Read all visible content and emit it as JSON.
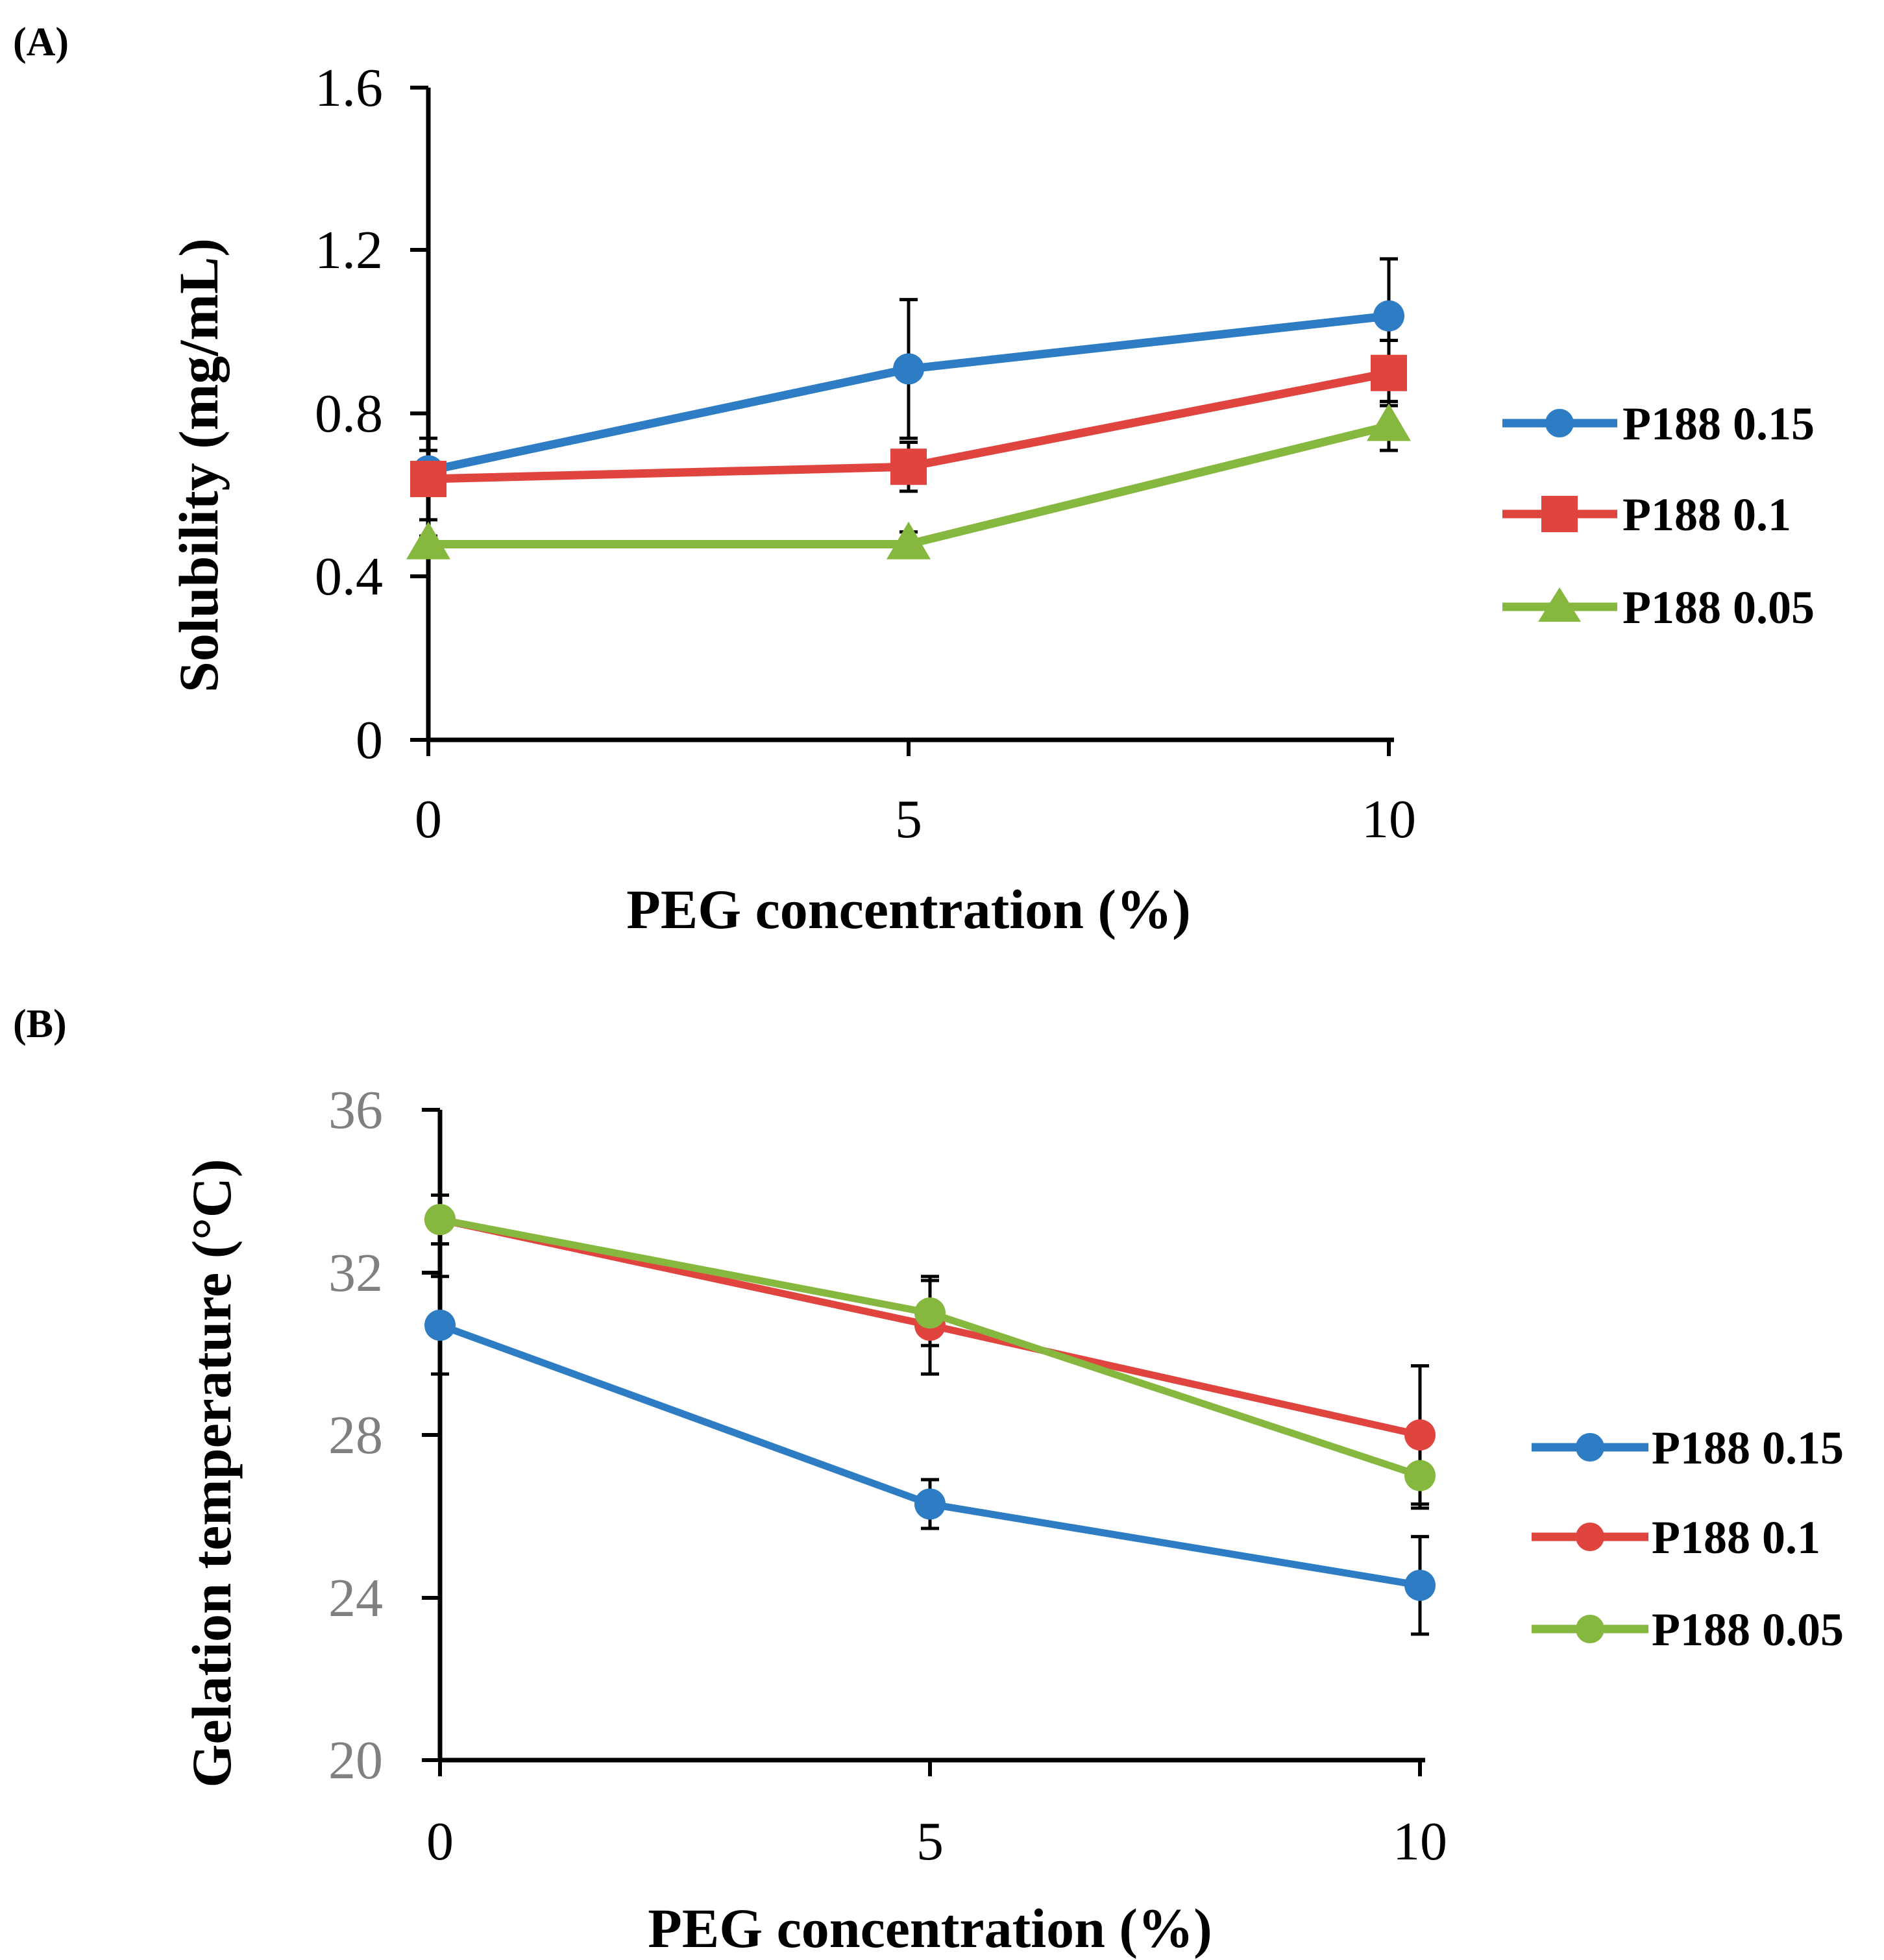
{
  "colors": {
    "blue": "#2e7dc4",
    "red": "#e0443f",
    "green": "#86b840",
    "axis": "#000000",
    "tick_b": "#808080"
  },
  "chart_data": [
    {
      "panel_label": "(A)",
      "type": "line",
      "x": [
        0,
        5,
        10
      ],
      "x_tick_labels": [
        "0",
        "5",
        "10"
      ],
      "xlim": [
        0,
        10
      ],
      "ylim": [
        0,
        1.6
      ],
      "y_ticks": [
        0,
        0.4,
        0.8,
        1.2,
        1.6
      ],
      "y_tick_labels": [
        "0",
        "0.4",
        "0.8",
        "1.2",
        "1.6"
      ],
      "xlabel": "PEG concentration (%)",
      "ylabel": "Solubility (mg/mL)",
      "grid": false,
      "legend_position": "right",
      "series": [
        {
          "name": "P188 0.15",
          "color": "#2e7dc4",
          "marker": "circle",
          "values": [
            0.66,
            0.91,
            1.04
          ],
          "errors": [
            0.05,
            0.17,
            0.14
          ]
        },
        {
          "name": "P188 0.1",
          "color": "#e0443f",
          "marker": "square",
          "values": [
            0.64,
            0.67,
            0.9
          ],
          "errors": [
            0.1,
            0.06,
            0.08
          ]
        },
        {
          "name": "P188 0.05",
          "color": "#86b840",
          "marker": "triangle",
          "values": [
            0.48,
            0.48,
            0.77
          ],
          "errors": [
            0.02,
            0.03,
            0.06
          ]
        }
      ]
    },
    {
      "panel_label": "(B)",
      "type": "line",
      "x": [
        0,
        5,
        10
      ],
      "x_tick_labels": [
        "0",
        "5",
        "10"
      ],
      "xlim": [
        0,
        10
      ],
      "ylim": [
        20,
        36
      ],
      "y_ticks": [
        20,
        24,
        28,
        32,
        36
      ],
      "y_tick_labels": [
        "20",
        "24",
        "28",
        "32",
        "36"
      ],
      "xlabel": "PEG concentration (%)",
      "ylabel": "Gelation temperature (°C)",
      "grid": false,
      "legend_position": "right",
      "series": [
        {
          "name": "P188 0.15",
          "color": "#2e7dc4",
          "marker": "circle",
          "values": [
            30.7,
            26.3,
            24.3
          ],
          "errors": [
            1.2,
            0.6,
            1.2
          ]
        },
        {
          "name": "P188 0.1",
          "color": "#e0443f",
          "marker": "circle",
          "values": [
            33.3,
            30.7,
            28.0
          ],
          "errors": [
            0.6,
            1.2,
            1.7
          ]
        },
        {
          "name": "P188 0.05",
          "color": "#86b840",
          "marker": "circle",
          "values": [
            33.3,
            31.0,
            27.0
          ],
          "errors": [
            0.6,
            0.8,
            0.8
          ]
        }
      ]
    }
  ]
}
